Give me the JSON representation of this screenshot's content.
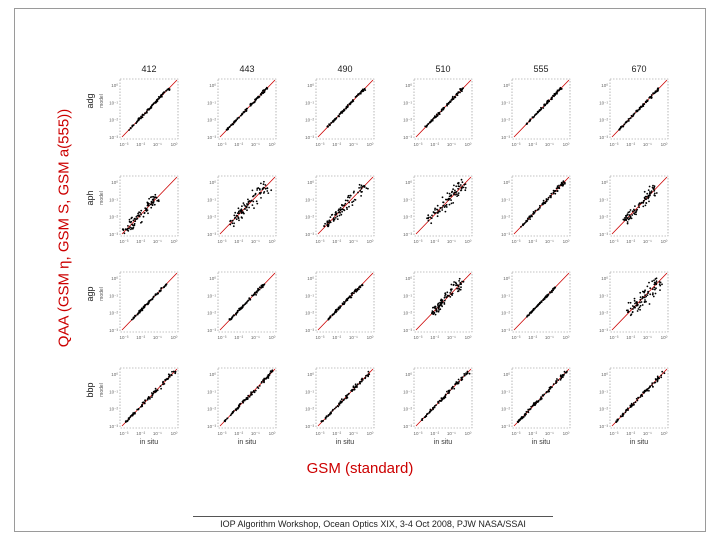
{
  "chart_data": {
    "type": "scatter",
    "title": "",
    "ylabel": "QAA (GSM η, GSM S, GSM a(555))",
    "xlabel": "GSM (standard)",
    "columns": [
      "412",
      "443",
      "490",
      "510",
      "555",
      "670"
    ],
    "rows": [
      {
        "label": "adg",
        "sublabel": "model"
      },
      {
        "label": "aph",
        "sublabel": "model"
      },
      {
        "label": "agp",
        "sublabel": "model"
      },
      {
        "label": "bbp",
        "sublabel": "model"
      }
    ],
    "panel_xlabel": "in situ",
    "axis_scale": "log",
    "y_tick_labels": [
      "10⁰",
      "10⁻¹",
      "10⁻²",
      "10⁻³"
    ],
    "x_tick_labels": [
      "10⁻³",
      "10⁻²",
      "10⁻¹",
      "10⁰"
    ],
    "reference_line": "1:1",
    "point_color": "#000000",
    "line_color": "#cc0000",
    "spread": [
      [
        0.06,
        0.05,
        0.06,
        0.06,
        0.05,
        0.06
      ],
      [
        0.35,
        0.3,
        0.25,
        0.3,
        0.1,
        0.28
      ],
      [
        0.05,
        0.06,
        0.06,
        0.25,
        0.04,
        0.35
      ],
      [
        0.08,
        0.08,
        0.08,
        0.08,
        0.08,
        0.08
      ]
    ],
    "data_range": [
      [
        [
          0.15,
          0.85
        ],
        [
          0.15,
          0.85
        ],
        [
          0.2,
          0.85
        ],
        [
          0.2,
          0.85
        ],
        [
          0.25,
          0.85
        ],
        [
          0.15,
          0.85
        ]
      ],
      [
        [
          0.05,
          0.65
        ],
        [
          0.2,
          0.85
        ],
        [
          0.15,
          0.85
        ],
        [
          0.25,
          0.9
        ],
        [
          0.15,
          0.9
        ],
        [
          0.25,
          0.8
        ]
      ],
      [
        [
          0.2,
          0.8
        ],
        [
          0.2,
          0.8
        ],
        [
          0.2,
          0.8
        ],
        [
          0.3,
          0.85
        ],
        [
          0.25,
          0.75
        ],
        [
          0.3,
          0.85
        ]
      ],
      [
        [
          0.1,
          0.95
        ],
        [
          0.1,
          0.95
        ],
        [
          0.1,
          0.95
        ],
        [
          0.1,
          0.95
        ],
        [
          0.1,
          0.95
        ],
        [
          0.1,
          0.95
        ]
      ]
    ]
  },
  "footer": "IOP Algorithm Workshop, Ocean Optics XIX, 3-4 Oct 2008, PJW NASA/SSAI"
}
